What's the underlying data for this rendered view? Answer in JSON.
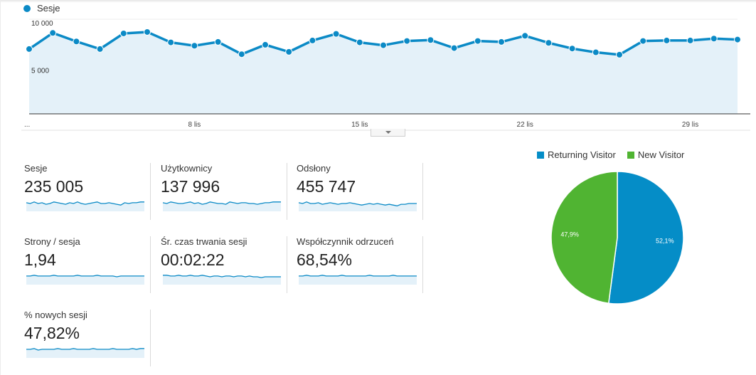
{
  "colors": {
    "line": "#0b8ac6",
    "area": "#e4f1f9",
    "returning": "#058dc7",
    "new": "#50b432"
  },
  "chart_data": [
    {
      "type": "line",
      "legend": "Sesje",
      "x_tick_labels": [
        "...",
        "8 lis",
        "15 lis",
        "22 lis",
        "29 lis"
      ],
      "y_tick_labels": [
        "10 000",
        "5 000"
      ],
      "ylim": [
        0,
        10000
      ],
      "grid": true,
      "series": [
        {
          "name": "Sesje",
          "values": [
            6850,
            8550,
            7650,
            6850,
            8500,
            8650,
            7550,
            7200,
            7600,
            6300,
            7300,
            6550,
            7750,
            8450,
            7550,
            7250,
            7700,
            7800,
            6950,
            7700,
            7600,
            8250,
            7500,
            6900,
            6500,
            6250,
            7700,
            7750,
            7750,
            7950,
            7850
          ]
        }
      ]
    },
    {
      "type": "pie",
      "legend": [
        "Returning Visitor",
        "New Visitor"
      ],
      "slices": [
        {
          "name": "Returning Visitor",
          "value": 52.1,
          "label": "52,1%"
        },
        {
          "name": "New Visitor",
          "value": 47.9,
          "label": "47,9%"
        }
      ]
    }
  ],
  "metrics": [
    {
      "label": "Sesje",
      "value": "235 005",
      "spark": [
        0.55,
        0.5,
        0.6,
        0.5,
        0.55,
        0.45,
        0.5,
        0.6,
        0.55,
        0.5,
        0.45,
        0.55,
        0.5,
        0.6,
        0.5,
        0.45,
        0.5,
        0.55,
        0.6,
        0.5,
        0.5,
        0.55,
        0.5,
        0.45,
        0.4,
        0.55,
        0.5,
        0.55,
        0.55,
        0.6,
        0.6
      ]
    },
    {
      "label": "Użytkownicy",
      "value": "137 996",
      "spark": [
        0.55,
        0.5,
        0.6,
        0.55,
        0.5,
        0.5,
        0.55,
        0.6,
        0.5,
        0.55,
        0.45,
        0.5,
        0.6,
        0.55,
        0.5,
        0.5,
        0.45,
        0.6,
        0.55,
        0.5,
        0.55,
        0.55,
        0.5,
        0.5,
        0.45,
        0.5,
        0.55,
        0.55,
        0.6,
        0.6,
        0.6
      ]
    },
    {
      "label": "Odsłony",
      "value": "455 747",
      "spark": [
        0.55,
        0.5,
        0.6,
        0.5,
        0.5,
        0.55,
        0.45,
        0.5,
        0.55,
        0.5,
        0.45,
        0.5,
        0.5,
        0.55,
        0.5,
        0.45,
        0.4,
        0.45,
        0.5,
        0.45,
        0.5,
        0.45,
        0.4,
        0.45,
        0.4,
        0.35,
        0.45,
        0.45,
        0.5,
        0.5,
        0.5
      ]
    },
    {
      "label": "Strony / sesja",
      "value": "1,94",
      "spark": [
        0.55,
        0.55,
        0.6,
        0.55,
        0.55,
        0.55,
        0.55,
        0.6,
        0.55,
        0.55,
        0.55,
        0.55,
        0.55,
        0.6,
        0.55,
        0.55,
        0.55,
        0.55,
        0.6,
        0.55,
        0.55,
        0.55,
        0.55,
        0.5,
        0.55,
        0.55,
        0.55,
        0.55,
        0.55,
        0.55,
        0.55
      ]
    },
    {
      "label": "Śr. czas trwania sesji",
      "value": "00:02:22",
      "spark": [
        0.6,
        0.6,
        0.55,
        0.55,
        0.6,
        0.55,
        0.55,
        0.6,
        0.55,
        0.55,
        0.6,
        0.55,
        0.5,
        0.55,
        0.55,
        0.5,
        0.55,
        0.55,
        0.5,
        0.55,
        0.55,
        0.5,
        0.55,
        0.5,
        0.5,
        0.45,
        0.5,
        0.5,
        0.5,
        0.5,
        0.5
      ]
    },
    {
      "label": "Współczynnik odrzuceń",
      "value": "68,54%",
      "spark": [
        0.55,
        0.55,
        0.6,
        0.55,
        0.55,
        0.55,
        0.6,
        0.55,
        0.55,
        0.55,
        0.55,
        0.6,
        0.55,
        0.55,
        0.55,
        0.55,
        0.55,
        0.55,
        0.6,
        0.55,
        0.55,
        0.55,
        0.55,
        0.55,
        0.6,
        0.55,
        0.55,
        0.55,
        0.55,
        0.55,
        0.55
      ]
    },
    {
      "label": "% nowych sesji",
      "value": "47,82%",
      "spark": [
        0.55,
        0.55,
        0.6,
        0.5,
        0.55,
        0.55,
        0.55,
        0.55,
        0.6,
        0.55,
        0.55,
        0.55,
        0.6,
        0.55,
        0.55,
        0.55,
        0.55,
        0.6,
        0.55,
        0.55,
        0.55,
        0.55,
        0.6,
        0.55,
        0.55,
        0.55,
        0.55,
        0.6,
        0.55,
        0.6,
        0.6
      ]
    }
  ]
}
